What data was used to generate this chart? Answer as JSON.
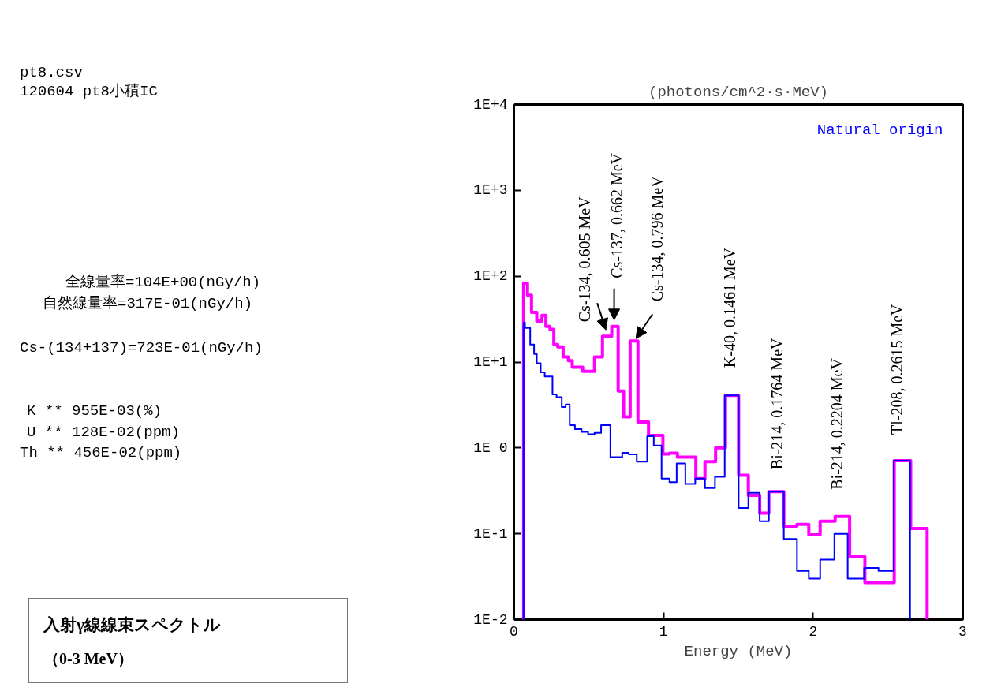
{
  "chart_data": {
    "type": "step",
    "title": "入射γ線線束スペクトル",
    "subtitle": "（0-3 MeV）",
    "xlabel": "Energy (MeV)",
    "ylabel": "(photons/cm^2·s·MeV)",
    "xlim": [
      0,
      3
    ],
    "xticks": [
      0,
      1,
      2,
      3
    ],
    "ylim": [
      0.01,
      10000
    ],
    "yticks": [
      {
        "value": 0.01,
        "label": "1E-2"
      },
      {
        "value": 0.1,
        "label": "1E-1"
      },
      {
        "value": 1,
        "label": "1E 0"
      },
      {
        "value": 10,
        "label": "1E+1"
      },
      {
        "value": 100,
        "label": "1E+2"
      },
      {
        "value": 1000,
        "label": "1E+3"
      },
      {
        "value": 10000,
        "label": "1E+4"
      }
    ],
    "log": true,
    "grid": false,
    "legend": "top right",
    "series": [
      {
        "color": "#ff00ff",
        "x": [
          0.065,
          0.065,
          0.091,
          0.118,
          0.153,
          0.188,
          0.214,
          0.241,
          0.267,
          0.293,
          0.329,
          0.364,
          0.39,
          0.46,
          0.539,
          0.592,
          0.654,
          0.697,
          0.733,
          0.777,
          0.829,
          0.9,
          0.996,
          1.04,
          1.093,
          1.216,
          1.277,
          1.348,
          1.414,
          1.502,
          1.567,
          1.643,
          1.704,
          1.804,
          1.892,
          1.971,
          2.047,
          2.147,
          2.244,
          2.346,
          2.542,
          2.652,
          2.762
        ],
        "values": [
          0.01,
          83,
          60,
          38,
          30,
          35,
          26,
          24,
          16,
          15,
          11.5,
          10.4,
          8.7,
          7.8,
          11.5,
          20,
          26,
          4.6,
          2.3,
          17.6,
          2.0,
          1.4,
          0.85,
          0.87,
          0.78,
          0.44,
          0.69,
          1.0,
          4.1,
          0.48,
          0.28,
          0.174,
          0.31,
          0.123,
          0.129,
          0.097,
          0.14,
          0.159,
          0.054,
          0.027,
          0.71,
          0.115,
          0.01
        ]
      },
      {
        "name": "Natural origin",
        "color": "#0000ff",
        "x": [
          0.065,
          0.065,
          0.074,
          0.109,
          0.135,
          0.153,
          0.179,
          0.206,
          0.258,
          0.285,
          0.32,
          0.346,
          0.373,
          0.408,
          0.452,
          0.496,
          0.539,
          0.583,
          0.645,
          0.724,
          0.768,
          0.821,
          0.891,
          0.935,
          0.987,
          1.04,
          1.088,
          1.146,
          1.212,
          1.277,
          1.344,
          1.409,
          1.502,
          1.567,
          1.643,
          1.704,
          1.804,
          1.892,
          1.971,
          2.047,
          2.142,
          2.231,
          2.341,
          2.437,
          2.539,
          2.648
        ],
        "values": [
          0.01,
          29,
          25,
          16,
          12.4,
          9.7,
          7.6,
          6.8,
          4.2,
          3.9,
          3.0,
          3.2,
          1.84,
          1.66,
          1.54,
          1.44,
          1.5,
          1.84,
          0.78,
          0.88,
          0.84,
          0.69,
          1.37,
          1.07,
          0.44,
          0.4,
          0.66,
          0.38,
          0.44,
          0.34,
          0.46,
          4.1,
          0.2,
          0.3,
          0.14,
          0.31,
          0.087,
          0.037,
          0.03,
          0.05,
          0.1,
          0.03,
          0.04,
          0.037,
          0.71,
          0.01
        ]
      }
    ],
    "annotations": [
      "pt8.csv",
      "120604 pt8小積IC",
      "全線量率=104E+00(nGy/h)",
      "自然線量率=317E-01(nGy/h)",
      "Cs-(134+137)=723E-01(nGy/h)",
      "K ** 955E-03(%)",
      "U ** 128E-02(ppm)",
      "Th ** 456E-02(ppm)",
      {
        "text": "Cs-134, 0.605 MeV",
        "x": 0.62,
        "y": 20
      },
      {
        "text": "Cs-137, 0.662 MeV",
        "x": 0.67,
        "y": 26
      },
      {
        "text": "Cs-134, 0.796 MeV",
        "x": 0.8,
        "y": 17.6
      },
      {
        "text": "K-40, 0.1461 MeV",
        "x": 1.46,
        "y": 4.1
      },
      {
        "text": "Bi-214, 0.1764 MeV",
        "x": 1.76,
        "y": 0.31
      },
      {
        "text": "Bi-214, 0.2204 MeV",
        "x": 2.2,
        "y": 0.159
      },
      {
        "text": "Tl-208, 0.2615 MeV",
        "x": 2.6,
        "y": 0.71
      }
    ]
  }
}
